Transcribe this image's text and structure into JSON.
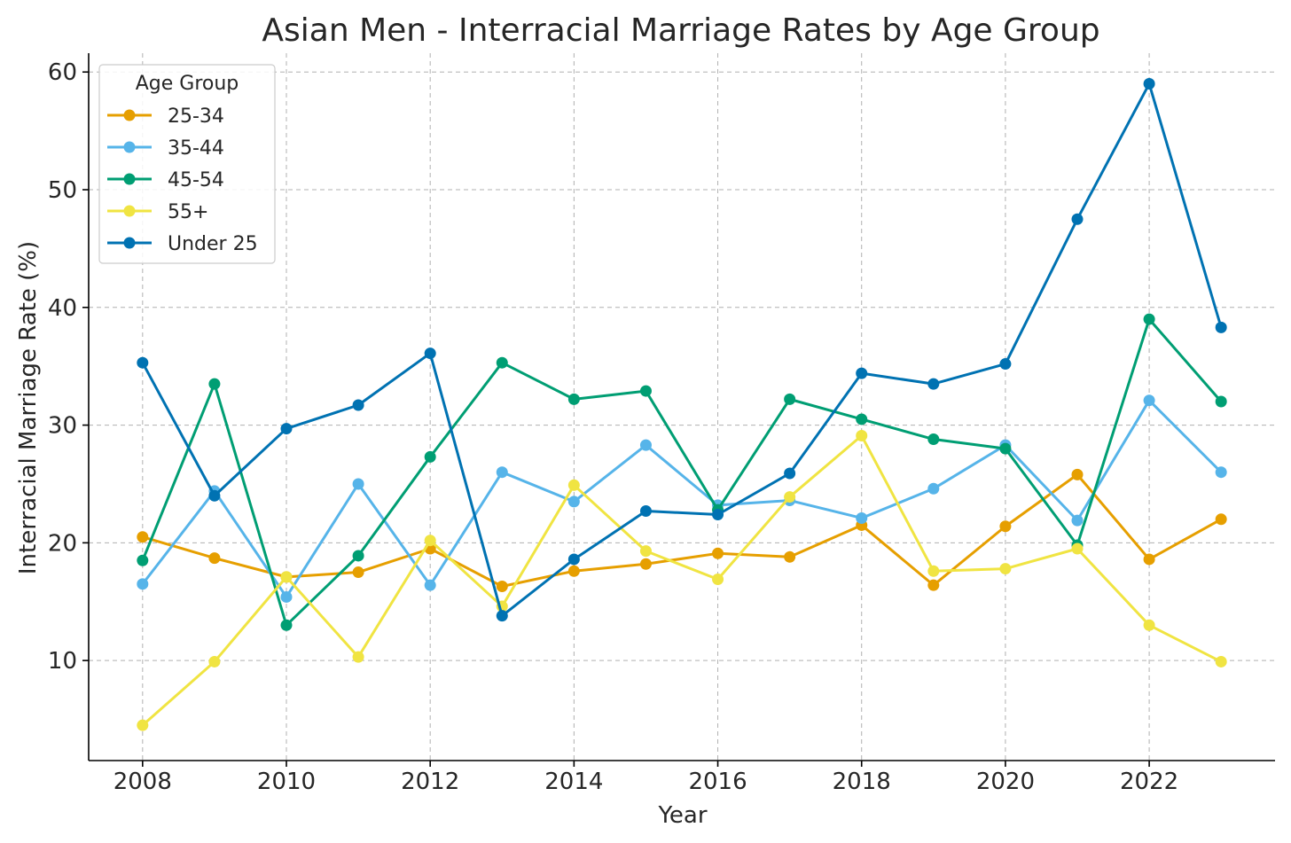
{
  "chart_data": {
    "type": "line",
    "title": "Asian Men - Interracial Marriage Rates by Age Group",
    "xlabel": "Year",
    "ylabel": "Interracial Marriage Rate (%)",
    "x": [
      2008,
      2009,
      2010,
      2011,
      2012,
      2013,
      2014,
      2015,
      2016,
      2017,
      2018,
      2019,
      2020,
      2021,
      2022,
      2023
    ],
    "xlim": [
      2007.25,
      2023.75
    ],
    "ylim": [
      1.5,
      61.6
    ],
    "xticks": [
      2008,
      2010,
      2012,
      2014,
      2016,
      2018,
      2020,
      2022
    ],
    "yticks": [
      10,
      20,
      30,
      40,
      50,
      60
    ],
    "grid": true,
    "legend": {
      "title": "Age Group",
      "position": "top-left"
    },
    "series": [
      {
        "name": "25-34",
        "color": "#E69F00",
        "values": [
          20.5,
          18.7,
          17.1,
          17.5,
          19.5,
          16.3,
          17.6,
          18.2,
          19.1,
          18.8,
          21.5,
          16.4,
          21.4,
          25.8,
          18.6,
          22.0
        ]
      },
      {
        "name": "35-44",
        "color": "#56B4E9",
        "values": [
          16.5,
          24.4,
          15.4,
          25.0,
          16.4,
          26.0,
          23.5,
          28.3,
          23.2,
          23.6,
          22.1,
          24.6,
          28.3,
          21.9,
          32.1,
          26.0
        ]
      },
      {
        "name": "45-54",
        "color": "#009E73",
        "values": [
          18.5,
          33.5,
          13.0,
          18.9,
          27.3,
          35.3,
          32.2,
          32.9,
          22.8,
          32.2,
          30.5,
          28.8,
          28.0,
          19.8,
          39.0,
          32.0
        ]
      },
      {
        "name": "55+",
        "color": "#F0E442",
        "values": [
          4.5,
          9.9,
          17.1,
          10.3,
          20.2,
          14.6,
          24.9,
          19.3,
          16.9,
          23.9,
          29.1,
          17.6,
          17.8,
          19.5,
          13.0,
          9.9
        ]
      },
      {
        "name": "Under 25",
        "color": "#0072B2",
        "values": [
          35.3,
          24.0,
          29.7,
          31.7,
          36.1,
          13.8,
          18.6,
          22.7,
          22.4,
          25.9,
          34.4,
          33.5,
          35.2,
          47.5,
          59.0,
          38.3
        ]
      }
    ]
  }
}
